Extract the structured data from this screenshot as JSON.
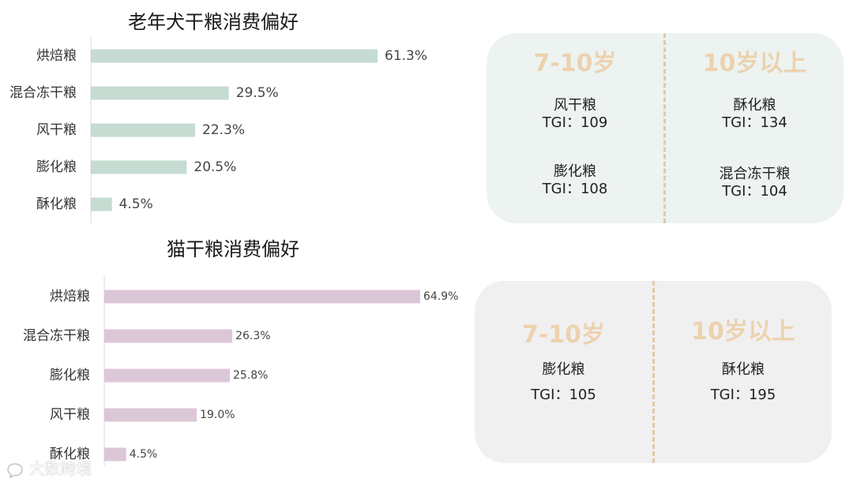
{
  "colors": {
    "dog_bar": "#c6dbd2",
    "cat_bar": "#dcc7d7",
    "axis": "#d9d9d9",
    "dog_card_bg": "#edf3f0",
    "cat_card_bg": "#f0f0f0",
    "accent": "#ecd2af"
  },
  "chart_data": [
    {
      "type": "bar",
      "orientation": "horizontal",
      "title": "老年犬干粮消费偏好",
      "categories": [
        "烘焙粮",
        "混合冻干粮",
        "风干粮",
        "膨化粮",
        "酥化粮"
      ],
      "values": [
        61.3,
        29.5,
        22.3,
        20.5,
        4.5
      ],
      "labels": [
        "61.3%",
        "29.5%",
        "22.3%",
        "20.5%",
        "4.5%"
      ],
      "unit": "%",
      "xlim": [
        0,
        70
      ],
      "grid": false,
      "legend": "none"
    },
    {
      "type": "bar",
      "orientation": "horizontal",
      "title": "猫干粮消费偏好",
      "categories": [
        "烘焙粮",
        "混合冻干粮",
        "膨化粮",
        "风干粮",
        "酥化粮"
      ],
      "values": [
        64.9,
        26.3,
        25.8,
        19.0,
        4.5
      ],
      "labels": [
        "64.9%",
        "26.3%",
        "25.8%",
        "19.0%",
        "4.5%"
      ],
      "unit": "%",
      "xlim": [
        0,
        70
      ],
      "grid": false,
      "legend": "none"
    }
  ],
  "dog_card": {
    "left": {
      "age": "7-10岁",
      "items": [
        {
          "name": "风干粮",
          "tgi": "TGI：109"
        },
        {
          "name": "膨化粮",
          "tgi": "TGI：108"
        }
      ]
    },
    "right": {
      "age": "10岁以上",
      "items": [
        {
          "name": "酥化粮",
          "tgi": "TGI：134"
        },
        {
          "name": "混合冻干粮",
          "tgi": "TGI：104"
        }
      ]
    }
  },
  "cat_card": {
    "left": {
      "age": "7-10岁",
      "items": [
        {
          "name": "膨化粮",
          "tgi": "TGI：105"
        }
      ]
    },
    "right": {
      "age": "10岁以上",
      "items": [
        {
          "name": "酥化粮",
          "tgi": "TGI：195"
        }
      ]
    }
  },
  "watermark": {
    "text": "大数跨境",
    "icon": "chat-bubble-logo"
  }
}
